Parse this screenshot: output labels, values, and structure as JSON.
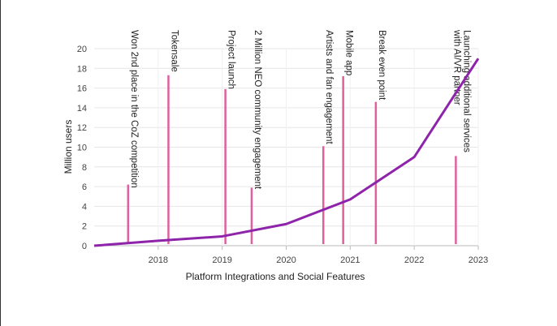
{
  "chart_data": {
    "type": "line",
    "title": "",
    "xlabel": "Platform Integrations and Social Features",
    "ylabel": "Million users",
    "xlim": [
      2017,
      2023
    ],
    "ylim": [
      0,
      20
    ],
    "xticks": [
      "2018",
      "2019",
      "2020",
      "2021",
      "2022",
      "2023"
    ],
    "yticks": [
      "0",
      "2",
      "4",
      "6",
      "8",
      "10",
      "12",
      "14",
      "16",
      "18",
      "20"
    ],
    "grid": true,
    "series": [
      {
        "name": "Million users",
        "color": "#8e24aa",
        "x": [
          2017,
          2018,
          2019,
          2020,
          2021,
          2022,
          2023
        ],
        "y": [
          0,
          0.5,
          0.95,
          2.2,
          4.7,
          9,
          19
        ]
      }
    ],
    "annotations": [
      {
        "x": 2017.53,
        "height": 6.2,
        "lines": [
          "Won 2nd place in the CoZ competition"
        ]
      },
      {
        "x": 2018.16,
        "height": 17.3,
        "lines": [
          "Tokensale"
        ]
      },
      {
        "x": 2019.05,
        "height": 15.9,
        "lines": [
          "Project launch"
        ]
      },
      {
        "x": 2019.46,
        "height": 5.9,
        "lines": [
          "2 Million NEO community engagement"
        ]
      },
      {
        "x": 2020.58,
        "height": 10.1,
        "lines": [
          "Artists and fan engagement"
        ]
      },
      {
        "x": 2020.89,
        "height": 17.2,
        "lines": [
          "Mobile app"
        ]
      },
      {
        "x": 2021.4,
        "height": 14.6,
        "lines": [
          "Break even point"
        ]
      },
      {
        "x": 2022.65,
        "height": 9.1,
        "lines": [
          "Launching  additional services",
          "with AI/VR partner"
        ]
      }
    ],
    "annotation_color": "#e0609e"
  }
}
